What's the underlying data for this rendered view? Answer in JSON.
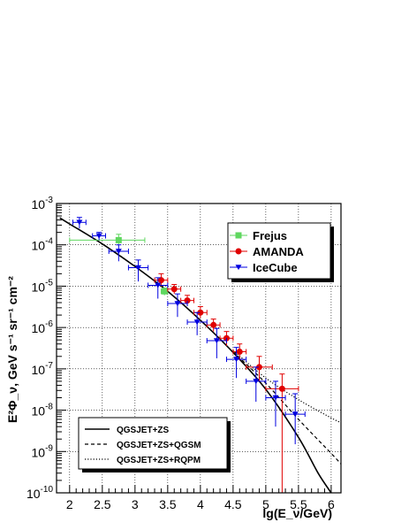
{
  "chart_data": {
    "type": "scatter",
    "xlabel": "lg(E_ν/GeV)",
    "ylabel": "E²Φ_ν, GeV s⁻¹ sr⁻¹ cm⁻²",
    "x_range": [
      1.8,
      6.15
    ],
    "y_log_range": [
      -10,
      -3
    ],
    "y_scale": "log",
    "grid": true,
    "x_ticks": [
      {
        "v": 2,
        "label": "2"
      },
      {
        "v": 2.5,
        "label": "2.5"
      },
      {
        "v": 3,
        "label": "3"
      },
      {
        "v": 3.5,
        "label": "3.5"
      },
      {
        "v": 4,
        "label": "4"
      },
      {
        "v": 4.5,
        "label": "4.5"
      },
      {
        "v": 5,
        "label": "5"
      },
      {
        "v": 5.5,
        "label": "5.5"
      },
      {
        "v": 6,
        "label": "6"
      }
    ],
    "y_ticks": [
      {
        "v": -10,
        "base": "10",
        "exp": "-10"
      },
      {
        "v": -9,
        "base": "10",
        "exp": "-9"
      },
      {
        "v": -8,
        "base": "10",
        "exp": "-8"
      },
      {
        "v": -7,
        "base": "10",
        "exp": "-7"
      },
      {
        "v": -6,
        "base": "10",
        "exp": "-6"
      },
      {
        "v": -5,
        "base": "10",
        "exp": "-5"
      },
      {
        "v": -4,
        "base": "10",
        "exp": "-4"
      },
      {
        "v": -3,
        "base": "10",
        "exp": "-3"
      }
    ],
    "series": [
      {
        "name": "Frejus",
        "marker": "square",
        "color": "#5fd75f",
        "points": [
          {
            "x": 2.75,
            "y": 0.00013,
            "xerr": [
              0.75,
              0.4
            ],
            "yerr": [
              0.0001,
              0.00018
            ]
          },
          {
            "x": 3.45,
            "y": 7.5e-06,
            "xerr": [
              0.05,
              0.05
            ],
            "yerr": [
              6e-06,
              9e-06
            ]
          }
        ]
      },
      {
        "name": "AMANDA",
        "marker": "circle",
        "color": "#e00000",
        "points": [
          {
            "x": 3.4,
            "y": 1.4e-05,
            "xerr": [
              0.1,
              0.1
            ],
            "yerr": [
              1e-05,
              2e-05
            ]
          },
          {
            "x": 3.6,
            "y": 8.5e-06,
            "xerr": [
              0.1,
              0.1
            ],
            "yerr": [
              6.5e-06,
              1.1e-05
            ]
          },
          {
            "x": 3.8,
            "y": 4.5e-06,
            "xerr": [
              0.1,
              0.1
            ],
            "yerr": [
              3.4e-06,
              6e-06
            ]
          },
          {
            "x": 4.0,
            "y": 2.3e-06,
            "xerr": [
              0.1,
              0.1
            ],
            "yerr": [
              1.7e-06,
              3.2e-06
            ]
          },
          {
            "x": 4.2,
            "y": 1.15e-06,
            "xerr": [
              0.1,
              0.1
            ],
            "yerr": [
              8e-07,
              1.6e-06
            ]
          },
          {
            "x": 4.4,
            "y": 5.5e-07,
            "xerr": [
              0.1,
              0.1
            ],
            "yerr": [
              3.6e-07,
              8e-07
            ]
          },
          {
            "x": 4.6,
            "y": 2.6e-07,
            "xerr": [
              0.1,
              0.1
            ],
            "yerr": [
              1.6e-07,
              4e-07
            ]
          },
          {
            "x": 4.9,
            "y": 1.1e-07,
            "xerr": [
              0.2,
              0.2
            ],
            "yerr": [
              5e-08,
              2e-07
            ]
          },
          {
            "x": 5.25,
            "y": 3.3e-08,
            "xerr": [
              0.25,
              0.25
            ],
            "yerr": [
              1e-10,
              7.5e-08
            ]
          }
        ]
      },
      {
        "name": "IceCube",
        "marker": "triangle-down",
        "color": "#0000e0",
        "points": [
          {
            "x": 2.15,
            "y": 0.00035,
            "xerr": [
              0.1,
              0.1
            ],
            "yerr": [
              0.00025,
              0.00046
            ]
          },
          {
            "x": 2.45,
            "y": 0.000165,
            "xerr": [
              0.1,
              0.1
            ],
            "yerr": [
              0.00013,
              0.0002
            ]
          },
          {
            "x": 2.75,
            "y": 7e-05,
            "xerr": [
              0.15,
              0.15
            ],
            "yerr": [
              4e-05,
              0.0001
            ]
          },
          {
            "x": 3.05,
            "y": 2.8e-05,
            "xerr": [
              0.15,
              0.15
            ],
            "yerr": [
              1.3e-05,
              4.3e-05
            ]
          },
          {
            "x": 3.35,
            "y": 1.05e-05,
            "xerr": [
              0.15,
              0.15
            ],
            "yerr": [
              5e-06,
              1.6e-05
            ]
          },
          {
            "x": 3.65,
            "y": 3.8e-06,
            "xerr": [
              0.15,
              0.15
            ],
            "yerr": [
              1.8e-06,
              6.5e-06
            ]
          },
          {
            "x": 3.95,
            "y": 1.35e-06,
            "xerr": [
              0.15,
              0.15
            ],
            "yerr": [
              6.5e-07,
              2.3e-06
            ]
          },
          {
            "x": 4.25,
            "y": 4.8e-07,
            "xerr": [
              0.15,
              0.15
            ],
            "yerr": [
              1.8e-07,
              9.5e-07
            ]
          },
          {
            "x": 4.55,
            "y": 1.7e-07,
            "xerr": [
              0.15,
              0.15
            ],
            "yerr": [
              6e-08,
              3.3e-07
            ]
          },
          {
            "x": 4.85,
            "y": 5e-08,
            "xerr": [
              0.15,
              0.15
            ],
            "yerr": [
              1.6e-08,
              1.1e-07
            ]
          },
          {
            "x": 5.15,
            "y": 2e-08,
            "xerr": [
              0.15,
              0.15
            ],
            "yerr": [
              4e-09,
              5e-08
            ]
          },
          {
            "x": 5.45,
            "y": 8e-09,
            "xerr": [
              0.15,
              0.15
            ],
            "yerr": [
              1.5e-09,
              2.5e-08
            ]
          }
        ]
      }
    ],
    "curves": [
      {
        "name": "QGSJET+ZS",
        "style": "solid",
        "points": [
          [
            1.85,
            0.00045
          ],
          [
            2.0,
            0.00032
          ],
          [
            2.5,
            0.000105
          ],
          [
            3.0,
            3e-05
          ],
          [
            3.5,
            7.5e-06
          ],
          [
            4.0,
            1.5e-06
          ],
          [
            4.5,
            2.5e-07
          ],
          [
            5.0,
            3.2e-08
          ],
          [
            5.5,
            2.2e-09
          ],
          [
            5.8,
            3e-10
          ],
          [
            6.0,
            1e-10
          ]
        ]
      },
      {
        "name": "QGSJET+ZS+QGSM",
        "style": "dashed",
        "points": [
          [
            4.5,
            2.6e-07
          ],
          [
            5.0,
            4.5e-08
          ],
          [
            5.5,
            6e-09
          ],
          [
            6.0,
            9e-10
          ],
          [
            6.15,
            5e-10
          ]
        ]
      },
      {
        "name": "QGSJET+ZS+RQPM",
        "style": "dotted",
        "points": [
          [
            4.5,
            2.8e-07
          ],
          [
            5.0,
            6e-08
          ],
          [
            5.5,
            1.8e-08
          ],
          [
            6.0,
            6.5e-09
          ],
          [
            6.15,
            5e-09
          ]
        ]
      }
    ],
    "legend_markers": {
      "position": "top-right",
      "entries": [
        "Frejus",
        "AMANDA",
        "IceCube"
      ]
    },
    "legend_curves": {
      "position": "bottom-left",
      "entries": [
        "QGSJET+ZS",
        "QGSJET+ZS+QGSM",
        "QGSJET+ZS+RQPM"
      ]
    }
  }
}
